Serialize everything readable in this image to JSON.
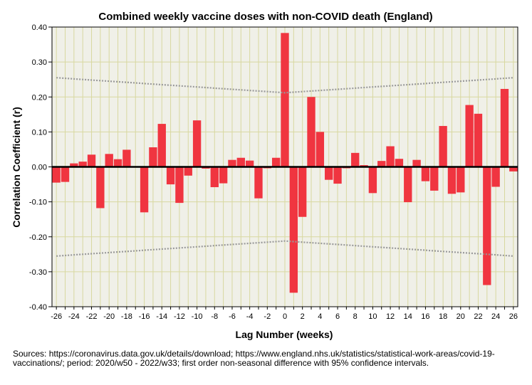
{
  "chart_data": {
    "type": "bar",
    "title": "Combined weekly vaccine doses with non-COVID death (England)",
    "xlabel": "Lag Number (weeks)",
    "ylabel": "Correlation Coefficient (r)",
    "ylim": [
      -0.4,
      0.4
    ],
    "xlim": [
      -26,
      26
    ],
    "y_ticks": [
      "0.40",
      "0.30",
      "0.20",
      "0.10",
      "0.00",
      "-0.10",
      "-0.20",
      "-0.30",
      "-0.40"
    ],
    "x_ticks": [
      "-26",
      "-24",
      "-22",
      "-20",
      "-18",
      "-16",
      "-14",
      "-12",
      "-10",
      "-8",
      "-6",
      "-4",
      "-2",
      "0",
      "2",
      "4",
      "6",
      "8",
      "10",
      "12",
      "14",
      "16",
      "18",
      "20",
      "22",
      "24",
      "26"
    ],
    "bar_color": "#f03540",
    "ci_color": "#999999",
    "background_color": "#f0f0e8",
    "grid_color": "#d8d8a0",
    "x": [
      -26,
      -25,
      -24,
      -23,
      -22,
      -21,
      -20,
      -19,
      -18,
      -17,
      -16,
      -15,
      -14,
      -13,
      -12,
      -11,
      -10,
      -9,
      -8,
      -7,
      -6,
      -5,
      -4,
      -3,
      -2,
      -1,
      0,
      1,
      2,
      3,
      4,
      5,
      6,
      7,
      8,
      9,
      10,
      11,
      12,
      13,
      14,
      15,
      16,
      17,
      18,
      19,
      20,
      21,
      22,
      23,
      24,
      25,
      26
    ],
    "values": [
      -0.045,
      -0.043,
      0.01,
      0.015,
      0.035,
      -0.118,
      0.037,
      0.022,
      0.049,
      0.0,
      -0.13,
      0.056,
      0.123,
      -0.05,
      -0.103,
      -0.025,
      0.133,
      -0.005,
      -0.058,
      -0.047,
      0.02,
      0.026,
      0.018,
      -0.09,
      -0.004,
      0.026,
      0.383,
      -0.36,
      -0.143,
      0.2,
      0.1,
      -0.037,
      -0.048,
      -0.004,
      0.04,
      0.005,
      -0.075,
      0.017,
      0.059,
      0.023,
      -0.101,
      0.02,
      -0.041,
      -0.068,
      0.117,
      -0.077,
      -0.073,
      0.177,
      0.152,
      -0.338,
      -0.057,
      0.223,
      -0.013
    ],
    "ci_upper": {
      "at_lag_26": 0.255,
      "at_lag_0": 0.212
    },
    "ci_lower": {
      "at_lag_26": -0.255,
      "at_lag_0": -0.212
    }
  },
  "source_note": "Sources: https://coronavirus.data.gov.uk/details/download; https://www.england.nhs.uk/statistics/statistical-work-areas/covid-19-vaccinations/; period: 2020/w50 - 2022/w33; first order non-seasonal difference with 95% confidence intervals."
}
